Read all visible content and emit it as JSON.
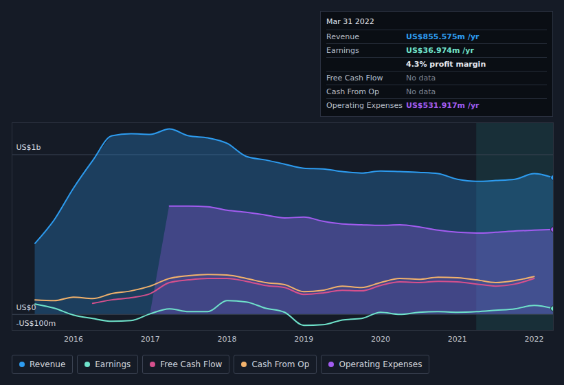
{
  "chart_data": {
    "type": "area",
    "x": [
      2015.5,
      2015.75,
      2016.0,
      2016.25,
      2016.5,
      2016.75,
      2017.0,
      2017.25,
      2017.5,
      2017.75,
      2018.0,
      2018.25,
      2018.5,
      2018.75,
      2019.0,
      2019.25,
      2019.5,
      2019.75,
      2020.0,
      2020.25,
      2020.5,
      2020.75,
      2021.0,
      2021.25,
      2021.5,
      2021.75,
      2022.0,
      2022.25
    ],
    "xlim": [
      2015.2,
      2022.25
    ],
    "xticks": [
      2016,
      2017,
      2018,
      2019,
      2020,
      2021,
      2022
    ],
    "ylim": [
      -100,
      1200
    ],
    "yticks": [
      {
        "value": -100,
        "label": "-US$100m"
      },
      {
        "value": 0,
        "label": "US$0"
      },
      {
        "value": 1000,
        "label": "US$1b"
      }
    ],
    "grid": true,
    "highlight_x": [
      2021.25,
      2022.25
    ],
    "series": [
      {
        "name": "Revenue",
        "type": "area",
        "color": "#2d9cf0",
        "marker": "circle",
        "values": [
          445,
          592,
          790,
          963,
          1118,
          1131,
          1127,
          1161,
          1118,
          1105,
          1071,
          989,
          967,
          941,
          915,
          911,
          894,
          885,
          898,
          894,
          889,
          881,
          846,
          833,
          838,
          846,
          881,
          856
        ]
      },
      {
        "name": "Earnings",
        "type": "line",
        "color": "#6fe3cb",
        "marker": "circle",
        "values": [
          65,
          39,
          -4,
          -26,
          -43,
          -39,
          4,
          35,
          17,
          17,
          86,
          78,
          39,
          13,
          -69,
          -65,
          -35,
          -26,
          13,
          0,
          13,
          17,
          13,
          17,
          26,
          35,
          56,
          37
        ]
      },
      {
        "name": "Free Cash Flow",
        "type": "line",
        "color": "#d6508d",
        "values": [
          null,
          null,
          null,
          69,
          91,
          104,
          130,
          199,
          216,
          225,
          225,
          207,
          181,
          168,
          125,
          134,
          151,
          147,
          181,
          203,
          199,
          207,
          203,
          190,
          177,
          190,
          225,
          null
        ]
      },
      {
        "name": "Cash From Op",
        "type": "line",
        "color": "#f2b26c",
        "values": [
          91,
          86,
          108,
          99,
          130,
          147,
          177,
          225,
          242,
          250,
          246,
          225,
          199,
          186,
          142,
          151,
          177,
          168,
          199,
          225,
          220,
          233,
          229,
          216,
          199,
          212,
          237,
          null
        ]
      },
      {
        "name": "Operating Expenses",
        "type": "area",
        "color": "#a25cf0",
        "marker": "circle",
        "values": [
          null,
          null,
          null,
          null,
          null,
          null,
          null,
          678,
          678,
          674,
          652,
          639,
          622,
          604,
          609,
          583,
          566,
          561,
          557,
          561,
          548,
          527,
          514,
          509,
          514,
          522,
          527,
          532
        ]
      }
    ],
    "tooltip": {
      "title": "Mar 31 2022",
      "rows": [
        {
          "label": "Revenue",
          "value": "US$855.575m /yr"
        },
        {
          "label": "Earnings",
          "value": "US$36.974m /yr"
        },
        {
          "value": "4.3% profit margin"
        },
        {
          "label": "Free Cash Flow",
          "value": "No data"
        },
        {
          "label": "Cash From Op",
          "value": "No data"
        },
        {
          "label": "Operating Expenses",
          "value": "US$531.917m /yr"
        }
      ]
    }
  }
}
